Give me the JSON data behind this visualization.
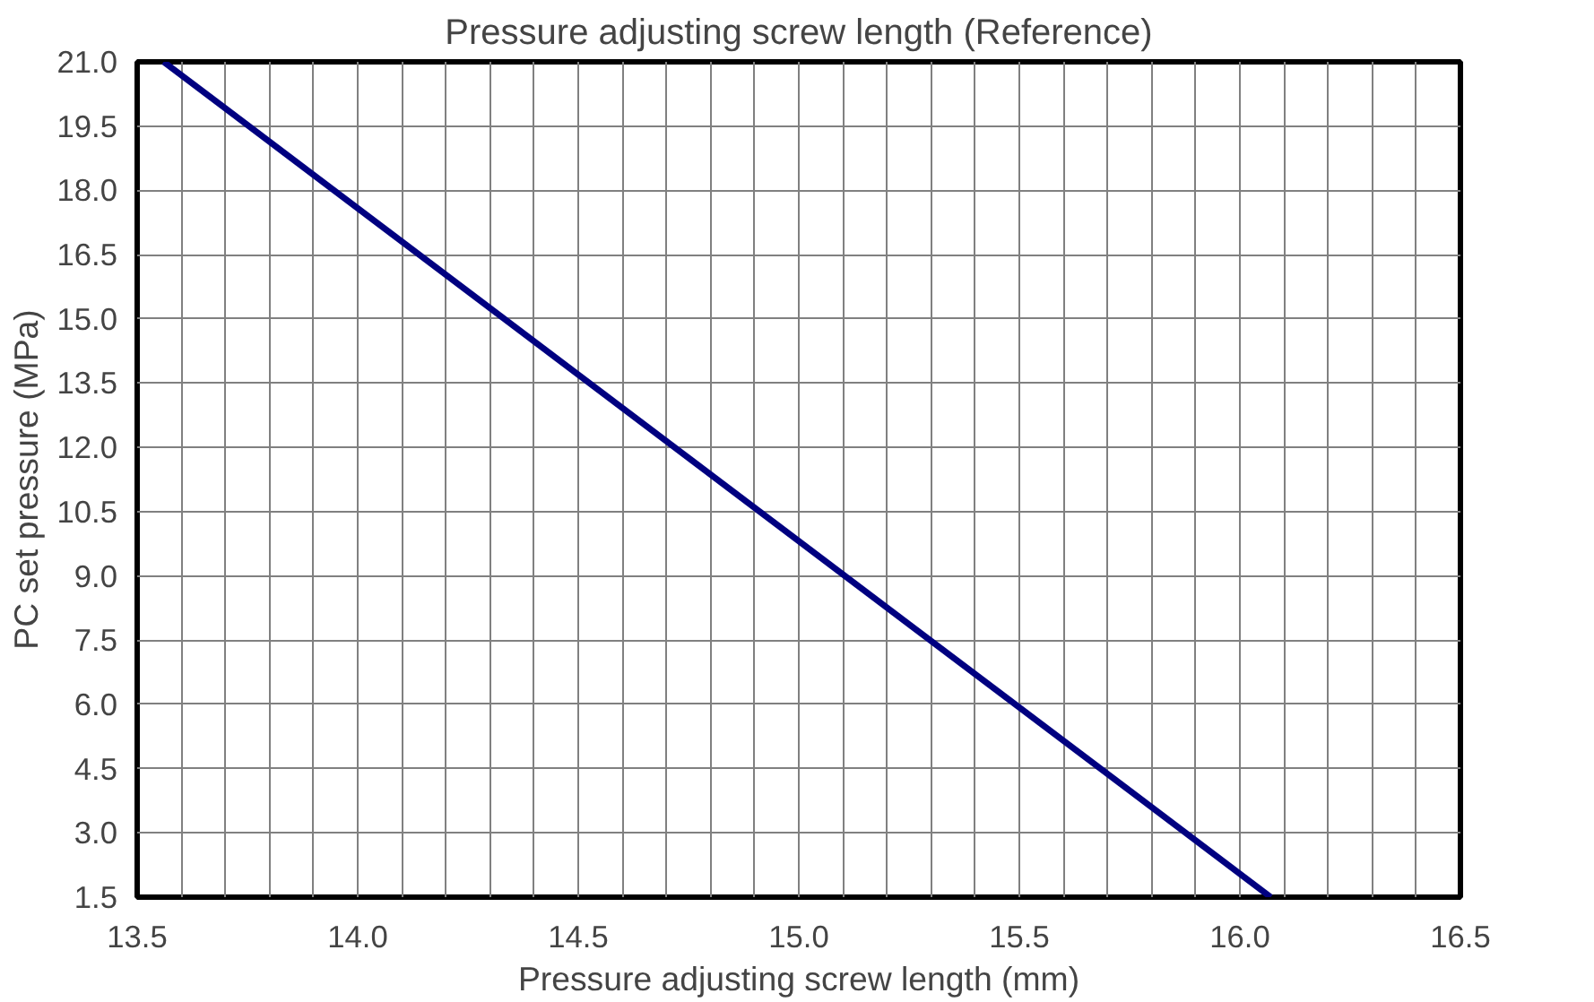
{
  "chart_data": {
    "type": "line",
    "title": "Pressure adjusting screw length (Reference)",
    "xlabel": "Pressure adjusting screw length (mm)",
    "ylabel": "PC set pressure (MPa)",
    "x": [
      13.56,
      16.07
    ],
    "series": [
      {
        "color": "#000080",
        "values": [
          21.0,
          1.5
        ]
      }
    ],
    "xlim": [
      13.5,
      16.5
    ],
    "ylim": [
      1.5,
      21.0
    ],
    "xticks": [
      {
        "value": 13.5,
        "label": "13.5"
      },
      {
        "value": 13.6,
        "label": null
      },
      {
        "value": 13.7,
        "label": null
      },
      {
        "value": 13.8,
        "label": null
      },
      {
        "value": 13.9,
        "label": null
      },
      {
        "value": 14.0,
        "label": "14.0"
      },
      {
        "value": 14.1,
        "label": null
      },
      {
        "value": 14.2,
        "label": null
      },
      {
        "value": 14.3,
        "label": null
      },
      {
        "value": 14.4,
        "label": null
      },
      {
        "value": 14.5,
        "label": "14.5"
      },
      {
        "value": 14.6,
        "label": null
      },
      {
        "value": 14.7,
        "label": null
      },
      {
        "value": 14.8,
        "label": null
      },
      {
        "value": 14.9,
        "label": null
      },
      {
        "value": 15.0,
        "label": "15.0"
      },
      {
        "value": 15.1,
        "label": null
      },
      {
        "value": 15.2,
        "label": null
      },
      {
        "value": 15.3,
        "label": null
      },
      {
        "value": 15.4,
        "label": null
      },
      {
        "value": 15.5,
        "label": "15.5"
      },
      {
        "value": 15.6,
        "label": null
      },
      {
        "value": 15.7,
        "label": null
      },
      {
        "value": 15.8,
        "label": null
      },
      {
        "value": 15.9,
        "label": null
      },
      {
        "value": 16.0,
        "label": "16.0"
      },
      {
        "value": 16.1,
        "label": null
      },
      {
        "value": 16.2,
        "label": null
      },
      {
        "value": 16.3,
        "label": null
      },
      {
        "value": 16.4,
        "label": null
      },
      {
        "value": 16.5,
        "label": "16.5"
      }
    ],
    "yticks": [
      1.5,
      {
        "value": 3.0,
        "label": "3.0"
      },
      4.5,
      {
        "value": 6.0,
        "label": "6.0"
      },
      7.5,
      {
        "value": 9.0,
        "label": "9.0"
      },
      10.5,
      {
        "value": 12.0,
        "label": "12.0"
      },
      13.5,
      {
        "value": 15.0,
        "label": "15.0"
      },
      16.5,
      {
        "value": 18.0,
        "label": "18.0"
      },
      19.5,
      {
        "value": 21.0,
        "label": "21.0"
      }
    ],
    "grid": true,
    "marker": "none",
    "line_style": "solid"
  }
}
